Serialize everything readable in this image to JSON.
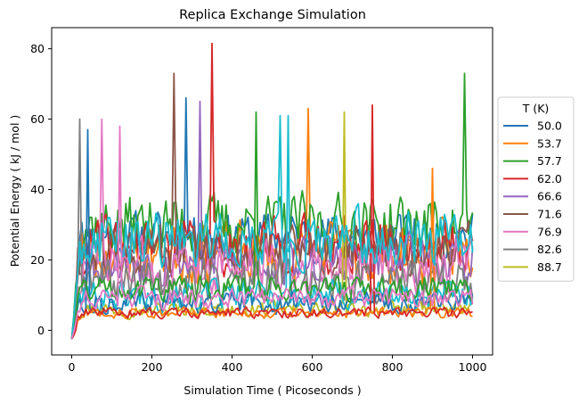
{
  "chart_data": {
    "type": "line",
    "title": "Replica Exchange Simulation",
    "xlabel": "Simulation Time ( Picoseconds )",
    "ylabel": "Potential Energy ( kJ / mol )",
    "xlim": [
      -50,
      1050
    ],
    "ylim": [
      -7,
      86
    ],
    "xticks": [
      0,
      200,
      400,
      600,
      800,
      1000
    ],
    "yticks": [
      0,
      20,
      40,
      60,
      80
    ],
    "grid": false,
    "legend": {
      "title": "T (K)",
      "placement": "right-outside"
    },
    "n_points": 201,
    "series": [
      {
        "name": "50.0",
        "color": "#1f77b4",
        "seed": 11,
        "offset": 0,
        "baseline": 27,
        "spread": 9,
        "peak": {
          "x": 285,
          "y": 66
        }
      },
      {
        "name": "53.7",
        "color": "#ff7f0e",
        "seed": 23,
        "offset": 0,
        "baseline": 22,
        "spread": 12,
        "peak": {
          "x": 590,
          "y": 63
        }
      },
      {
        "name": "57.7",
        "color": "#2ca02c",
        "seed": 37,
        "offset": 0,
        "baseline": 30,
        "spread": 12,
        "peak": {
          "x": 980,
          "y": 73
        }
      },
      {
        "name": "62.0",
        "color": "#d62728",
        "seed": 41,
        "offset": 0,
        "baseline": 24,
        "spread": 11,
        "peak": {
          "x": 352,
          "y": 81.5
        }
      },
      {
        "name": "66.6",
        "color": "#9467bd",
        "seed": 53,
        "offset": 0,
        "baseline": 20,
        "spread": 10,
        "peak": {
          "x": 320,
          "y": 65
        }
      },
      {
        "name": "71.6",
        "color": "#8c564b",
        "seed": 61,
        "offset": 0,
        "baseline": 22,
        "spread": 11,
        "peak": {
          "x": 254,
          "y": 73
        }
      },
      {
        "name": "76.9",
        "color": "#e377c2",
        "seed": 73,
        "offset": 0,
        "baseline": 18,
        "spread": 10,
        "peak": {
          "x": 75,
          "y": 60
        }
      },
      {
        "name": "82.6",
        "color": "#7f7f7f",
        "seed": 89,
        "offset": 0,
        "baseline": 14,
        "spread": 9,
        "peak": {
          "x": 20,
          "y": 60
        }
      },
      {
        "name": "88.7",
        "color": "#bcbd22",
        "seed": 97,
        "offset": 0,
        "baseline": 6,
        "spread": 3,
        "peak": {
          "x": 680,
          "y": 62
        }
      },
      {
        "name": "",
        "color": "#17becf",
        "seed": 101,
        "offset": 0,
        "baseline": 10,
        "spread": 6,
        "peak": {
          "x": 540,
          "y": 61
        }
      },
      {
        "name": "",
        "color": "#1f77b4",
        "seed": 113,
        "offset": 0,
        "baseline": 8,
        "spread": 4,
        "peak": {
          "x": 40,
          "y": 57
        }
      },
      {
        "name": "",
        "color": "#ff7f0e",
        "seed": 127,
        "offset": 0,
        "baseline": 5,
        "spread": 2,
        "peak": {
          "x": 900,
          "y": 46
        }
      },
      {
        "name": "",
        "color": "#2ca02c",
        "seed": 131,
        "offset": 0,
        "baseline": 12,
        "spread": 5,
        "peak": {
          "x": 460,
          "y": 62
        }
      },
      {
        "name": "",
        "color": "#d62728",
        "seed": 139,
        "offset": 0,
        "baseline": 5,
        "spread": 2,
        "peak": {
          "x": 750,
          "y": 64
        }
      },
      {
        "name": "",
        "color": "#17becf",
        "seed": 149,
        "offset": 0,
        "baseline": 26,
        "spread": 11,
        "peak": {
          "x": 520,
          "y": 61
        }
      },
      {
        "name": "",
        "color": "#e377c2",
        "seed": 151,
        "offset": 0,
        "baseline": 9,
        "spread": 4,
        "peak": {
          "x": 120,
          "y": 58
        }
      }
    ]
  }
}
